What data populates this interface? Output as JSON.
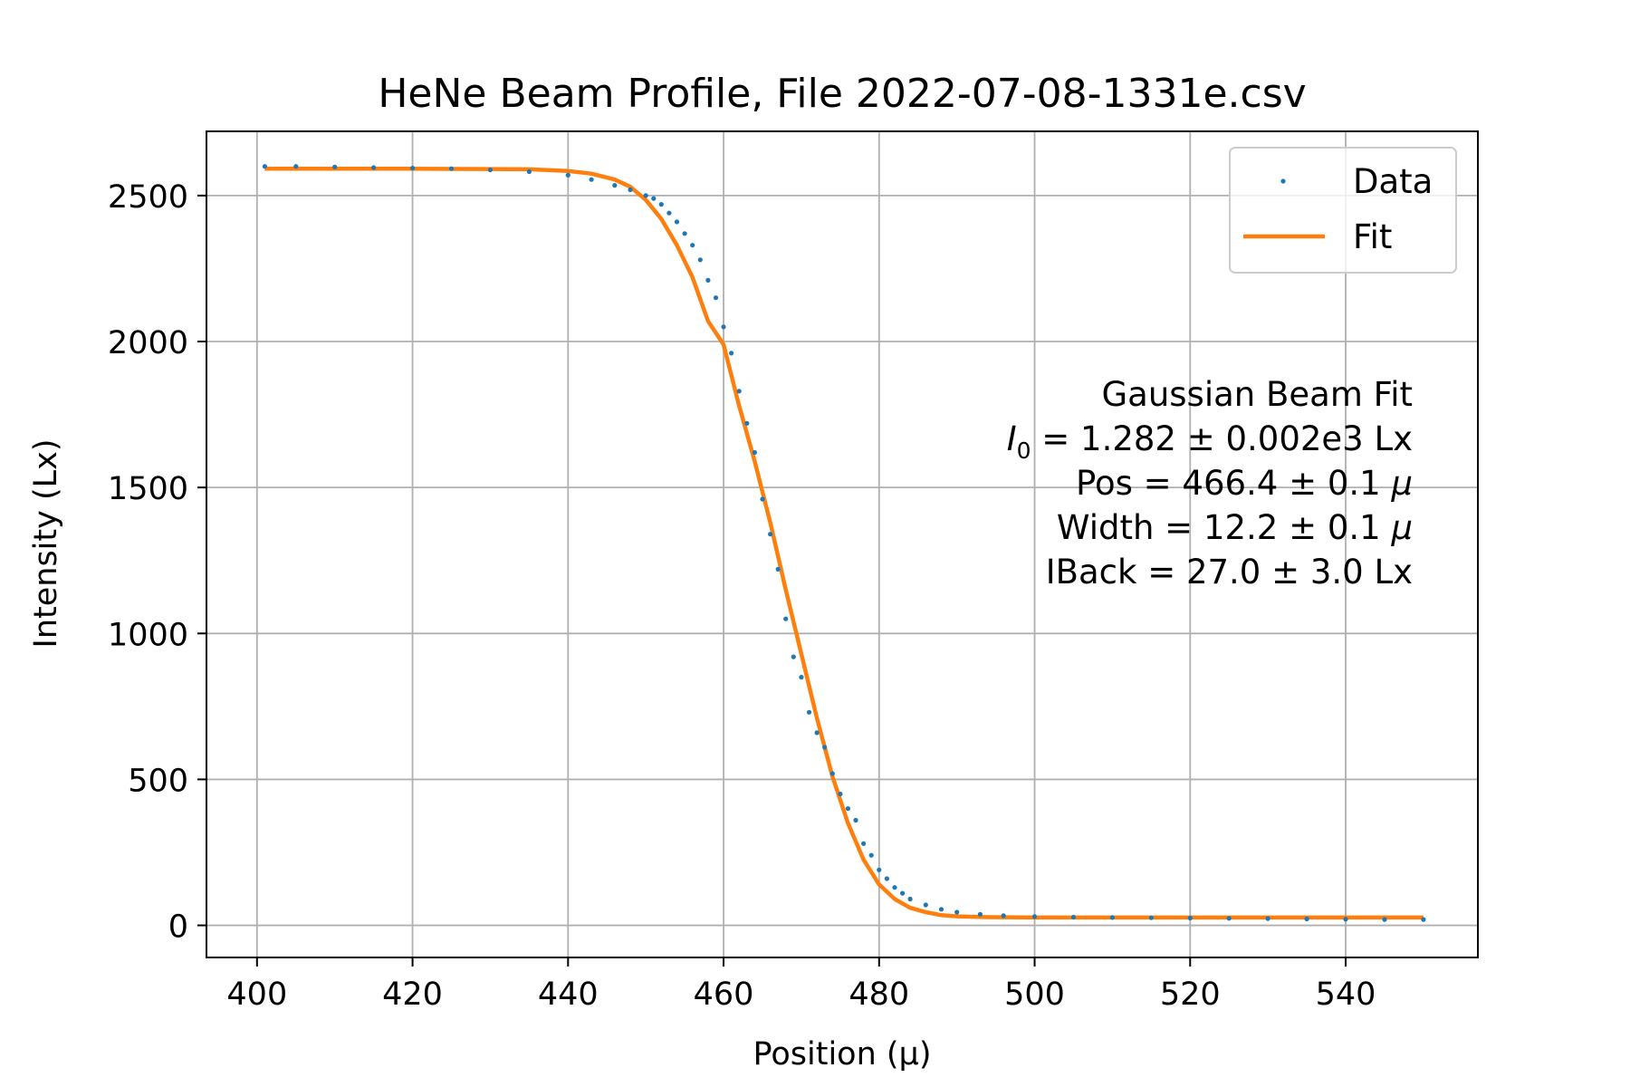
{
  "chart_data": {
    "type": "scatter",
    "title": "HeNe Beam Profile, File 2022-07-08-1331e.csv",
    "xlabel": "Position (μ)",
    "ylabel": "Intensity (Lx)",
    "xlim": [
      393.5,
      557
    ],
    "ylim": [
      -110,
      2720
    ],
    "xticks": [
      400,
      420,
      440,
      460,
      480,
      500,
      520,
      540
    ],
    "yticks": [
      0,
      500,
      1000,
      1500,
      2000,
      2500
    ],
    "grid": true,
    "legend_placement": "top-right",
    "colors": {
      "data": "#1f77b4",
      "fit": "#ff7f0e",
      "grid": "#b0b0b0"
    },
    "series": [
      {
        "name": "Data",
        "kind": "points",
        "x": [
          401,
          405,
          410,
          415,
          420,
          425,
          430,
          435,
          440,
          443,
          446,
          448,
          450,
          451,
          452,
          453,
          454,
          455,
          456,
          457,
          458,
          459,
          460,
          461,
          462,
          463,
          464,
          465,
          466,
          467,
          468,
          469,
          470,
          471,
          472,
          473,
          474,
          475,
          476,
          477,
          478,
          479,
          480,
          481,
          482,
          483,
          484,
          486,
          488,
          490,
          493,
          496,
          500,
          505,
          510,
          515,
          520,
          525,
          530,
          535,
          540,
          545,
          550
        ],
        "y": [
          2600,
          2600,
          2598,
          2596,
          2594,
          2592,
          2588,
          2582,
          2570,
          2555,
          2535,
          2520,
          2500,
          2490,
          2470,
          2440,
          2410,
          2370,
          2330,
          2280,
          2210,
          2150,
          2050,
          1960,
          1830,
          1720,
          1620,
          1460,
          1340,
          1220,
          1050,
          920,
          850,
          730,
          660,
          610,
          520,
          450,
          400,
          360,
          280,
          240,
          190,
          160,
          130,
          110,
          90,
          70,
          55,
          45,
          38,
          33,
          30,
          28,
          27,
          26,
          25,
          24,
          23,
          22,
          21,
          20,
          20
        ]
      },
      {
        "name": "Fit",
        "kind": "line",
        "x": [
          401,
          420,
          430,
          435,
          440,
          443,
          446,
          448,
          450,
          452,
          454,
          456,
          458,
          460,
          462,
          464,
          466,
          468,
          470,
          472,
          474,
          476,
          478,
          480,
          482,
          484,
          486,
          488,
          490,
          494,
          500,
          550
        ],
        "y": [
          2592,
          2592,
          2591,
          2590,
          2584,
          2575,
          2555,
          2530,
          2485,
          2420,
          2330,
          2220,
          2070,
          1990,
          1780,
          1590,
          1380,
          1150,
          930,
          710,
          510,
          350,
          225,
          140,
          90,
          60,
          45,
          35,
          31,
          28,
          27,
          27
        ]
      }
    ],
    "annotation": {
      "heading": "Gaussian Beam Fit",
      "i0_symbol": "I",
      "i0_sub": "0",
      "i0_value": " = 1.282 ± 0.002e3 Lx",
      "pos_label": "Pos = 466.4 ± 0.1 ",
      "width_label": "Width = 12.2 ± 0.1 ",
      "mu": "μ",
      "iback": "IBack = 27.0 ± 3.0 Lx"
    }
  }
}
